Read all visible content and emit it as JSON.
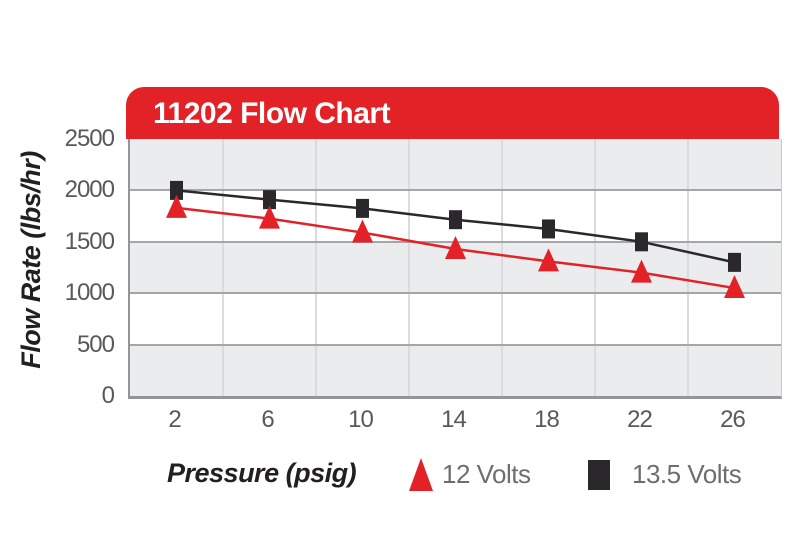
{
  "page": {
    "background": "#ffffff"
  },
  "chart": {
    "header_title": "11202 Flow Chart",
    "y_axis": {
      "title": "Flow Rate (lbs/hr)",
      "tick_labels": [
        "2500",
        "2000",
        "1500",
        "1000",
        "500",
        "0"
      ]
    },
    "x_axis": {
      "title": "Pressure (psig)",
      "tick_labels": [
        "2",
        "6",
        "10",
        "14",
        "18",
        "22",
        "26"
      ]
    },
    "legend": [
      {
        "label": "12 Volts",
        "marker": "triangle-up",
        "color": "#e32227"
      },
      {
        "label": "13.5 Volts",
        "marker": "square",
        "color": "#2a282b"
      }
    ]
  },
  "chart_data": {
    "type": "line",
    "title": "11202 Flow Chart",
    "xlabel": "Pressure (psig)",
    "ylabel": "Flow Rate (lbs/hr)",
    "x": [
      2,
      6,
      10,
      14,
      18,
      22,
      26
    ],
    "xticks": [
      "2",
      "6",
      "10",
      "14",
      "18",
      "22",
      "26"
    ],
    "yticks": [
      2500,
      2000,
      1500,
      1000,
      500,
      0
    ],
    "ylim": [
      0,
      2500
    ],
    "grid": true,
    "band_fill": "alternating-horizontal",
    "legend_position": "bottom",
    "series": [
      {
        "name": "12 Volts",
        "marker": "triangle-up",
        "color": "#e32227",
        "values": [
          1830,
          1725,
          1590,
          1430,
          1310,
          1200,
          1050
        ]
      },
      {
        "name": "13.5 Volts",
        "marker": "square",
        "color": "#2a282b",
        "values": [
          2000,
          1910,
          1825,
          1715,
          1625,
          1500,
          1300
        ]
      }
    ]
  },
  "palette": {
    "header_red": "#e32227",
    "band_gray": "#ebecee",
    "h_gridline": "#a4a6a9",
    "v_gridline": "#d9dbdd",
    "axis_line": "#939598",
    "tick_text": "#59595b",
    "legend_text": "#6d6e71",
    "title_text": "#ffffff"
  }
}
